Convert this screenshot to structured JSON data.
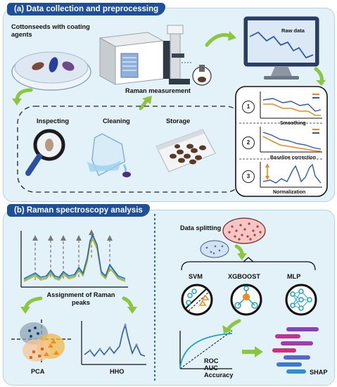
{
  "panel_a": {
    "title": "(a) Data collection and preprocessing",
    "cottonseeds_label": "Cottonseeds with coating agents",
    "raman_label": "Raman measurement",
    "raw_data_label": "Raw data",
    "steps": [
      "Inspecting",
      "Cleaning",
      "Storage"
    ],
    "preprocess": [
      {
        "num": "1",
        "label": "Smoothing"
      },
      {
        "num": "2",
        "label": "Baseline correction"
      },
      {
        "num": "3",
        "label": "Normalization"
      }
    ]
  },
  "panel_b": {
    "title": "(b) Raman spectroscopy analysis",
    "assignment_label": "Assignment of Raman peaks",
    "pca_label": "PCA",
    "hho_label": "HHO",
    "data_splitting_label": "Data splitting",
    "models": [
      "SVM",
      "XGBOOST",
      "MLP"
    ],
    "metrics": [
      "ROC",
      "AUC",
      "Accuracy"
    ],
    "shap_label": "SHAP"
  },
  "colors": {
    "title_bg": "#1f4f96",
    "panel_bg": "#e3f1f8",
    "arrow_green": "#8cc63f",
    "spectrum_blue": "#2e5aa8",
    "spectrum_orange": "#f08a1c",
    "spectrum_green": "#c8b600"
  }
}
